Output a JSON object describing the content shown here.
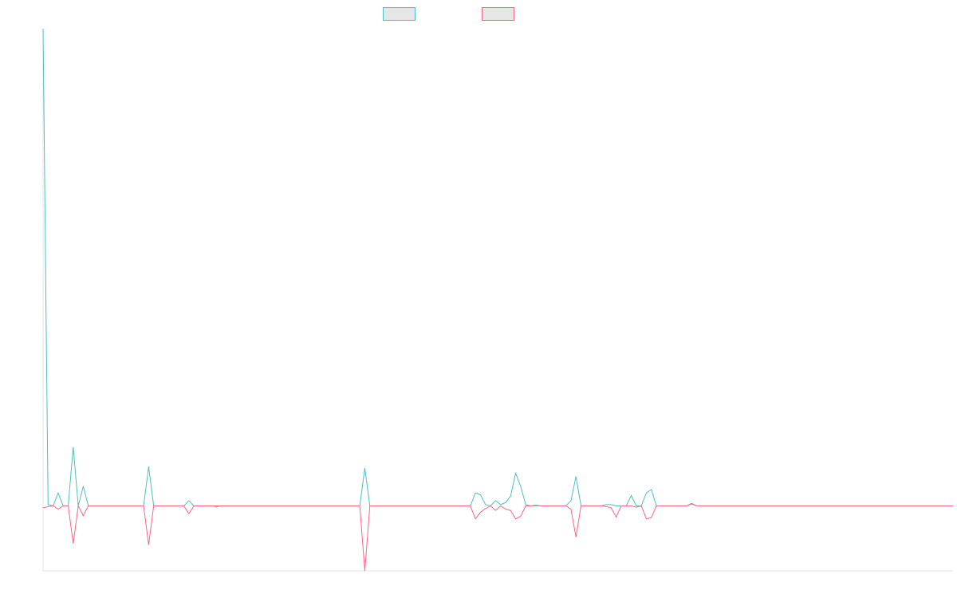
{
  "chart_data": {
    "type": "line",
    "title": "",
    "xlabel": "",
    "ylabel": "",
    "legend": {
      "position": "top-center"
    },
    "grid": false,
    "ylim": [
      -1,
      7.3
    ],
    "xlim": [
      0,
      181
    ],
    "series": [
      {
        "color": "#4bc0c0",
        "legend_fill": "#e6e6e6",
        "points": [
          [
            0,
            7.3
          ],
          [
            1,
            0.02
          ],
          [
            2,
            0
          ],
          [
            3,
            0.2
          ],
          [
            4,
            0
          ],
          [
            5,
            0
          ],
          [
            6,
            0.9
          ],
          [
            7,
            0
          ],
          [
            8,
            0.3
          ],
          [
            9,
            0
          ],
          [
            20,
            0
          ],
          [
            21,
            0.6
          ],
          [
            22,
            0
          ],
          [
            28,
            0
          ],
          [
            29,
            0.08
          ],
          [
            30,
            0
          ],
          [
            34,
            0
          ],
          [
            34.5,
            -0.02
          ],
          [
            35,
            0
          ],
          [
            63,
            0
          ],
          [
            64,
            0.58
          ],
          [
            65,
            0
          ],
          [
            85,
            0
          ],
          [
            86,
            0.2
          ],
          [
            87,
            0.17
          ],
          [
            88,
            0.02
          ],
          [
            89,
            0
          ],
          [
            90,
            0.08
          ],
          [
            91,
            0.02
          ],
          [
            92,
            0.05
          ],
          [
            93,
            0.15
          ],
          [
            94,
            0.5
          ],
          [
            95,
            0.3
          ],
          [
            96,
            0.02
          ],
          [
            97,
            0
          ],
          [
            104,
            0
          ],
          [
            105,
            0.08
          ],
          [
            106,
            0.45
          ],
          [
            107,
            0
          ],
          [
            111,
            0
          ],
          [
            112,
            0.02
          ],
          [
            113,
            0.02
          ],
          [
            114,
            0
          ],
          [
            116,
            0
          ],
          [
            117,
            0.16
          ],
          [
            118,
            0
          ],
          [
            119,
            0
          ],
          [
            120,
            0.2
          ],
          [
            121,
            0.25
          ],
          [
            122,
            0
          ],
          [
            128,
            0
          ],
          [
            129,
            0.04
          ],
          [
            130,
            0
          ],
          [
            181,
            0
          ]
        ]
      },
      {
        "color": "#ff6384",
        "legend_fill": "#e6e6e6",
        "points": [
          [
            0,
            -0.03
          ],
          [
            1,
            -0.01
          ],
          [
            2,
            0
          ],
          [
            3,
            -0.05
          ],
          [
            4,
            0
          ],
          [
            5,
            0
          ],
          [
            6,
            -0.58
          ],
          [
            7,
            0
          ],
          [
            8,
            -0.15
          ],
          [
            9,
            0
          ],
          [
            20,
            0
          ],
          [
            21,
            -0.6
          ],
          [
            22,
            0
          ],
          [
            28,
            0
          ],
          [
            29,
            -0.12
          ],
          [
            30,
            0
          ],
          [
            35,
            0
          ],
          [
            63,
            0
          ],
          [
            64,
            -1.0
          ],
          [
            65,
            0
          ],
          [
            85,
            0
          ],
          [
            86,
            -0.2
          ],
          [
            87,
            -0.1
          ],
          [
            88,
            -0.04
          ],
          [
            89,
            0
          ],
          [
            90,
            -0.07
          ],
          [
            91,
            0
          ],
          [
            92,
            -0.05
          ],
          [
            93,
            -0.07
          ],
          [
            94,
            -0.2
          ],
          [
            95,
            -0.16
          ],
          [
            96,
            0
          ],
          [
            97,
            0
          ],
          [
            98,
            0.01
          ],
          [
            99,
            0
          ],
          [
            104,
            0
          ],
          [
            105,
            -0.05
          ],
          [
            106,
            -0.48
          ],
          [
            107,
            0
          ],
          [
            111,
            0
          ],
          [
            112,
            -0.01
          ],
          [
            113,
            -0.03
          ],
          [
            114,
            -0.17
          ],
          [
            115,
            0
          ],
          [
            117,
            0
          ],
          [
            118,
            -0.02
          ],
          [
            119,
            0
          ],
          [
            120,
            -0.2
          ],
          [
            121,
            -0.18
          ],
          [
            122,
            0
          ],
          [
            128,
            0
          ],
          [
            129,
            0.03
          ],
          [
            130,
            0
          ],
          [
            181,
            0
          ]
        ]
      }
    ]
  }
}
